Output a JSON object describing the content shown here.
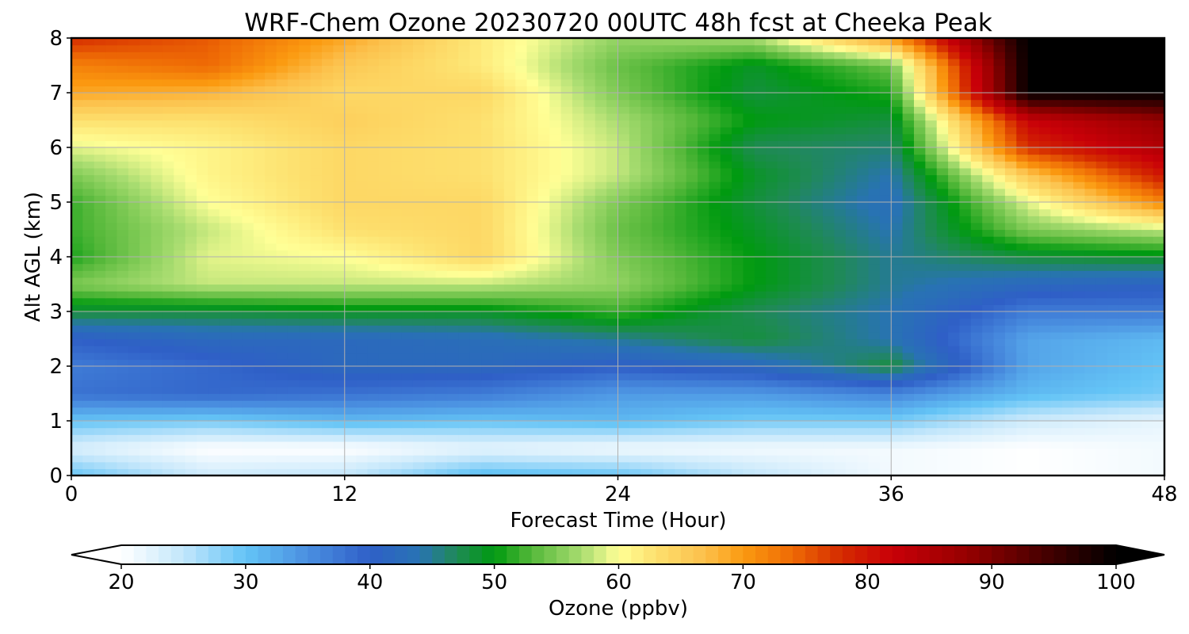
{
  "chart_data": {
    "type": "heatmap",
    "title": "WRF-Chem Ozone  20230720 00UTC 48h fcst at Cheeka Peak",
    "xlabel": "Forecast Time (Hour)",
    "ylabel": "Alt AGL (km)",
    "xlim": [
      0,
      48
    ],
    "ylim": [
      0,
      8
    ],
    "x_ticks": [
      0,
      12,
      24,
      36,
      48
    ],
    "y_ticks": [
      0,
      1,
      2,
      3,
      4,
      5,
      6,
      7,
      8
    ],
    "grid": true,
    "x": [
      0,
      6,
      12,
      18,
      24,
      30,
      36,
      42,
      48
    ],
    "y": [
      0,
      0.5,
      1,
      1.5,
      2,
      2.5,
      3,
      3.5,
      4,
      4.5,
      5,
      5.5,
      6,
      6.5,
      7,
      7.5,
      8
    ],
    "z": [
      [
        30,
        24,
        25,
        31,
        30,
        25,
        21,
        20,
        21
      ],
      [
        23,
        20,
        20,
        22,
        21,
        21,
        21,
        20,
        21
      ],
      [
        30,
        29,
        31,
        30,
        31,
        29,
        29,
        24,
        22
      ],
      [
        38,
        39,
        38,
        37,
        34,
        34,
        36,
        31,
        29
      ],
      [
        37,
        39,
        42,
        42,
        40,
        42,
        48,
        33,
        30
      ],
      [
        40,
        42,
        42,
        43,
        45,
        48,
        44,
        33,
        31
      ],
      [
        48,
        48,
        49,
        49,
        52,
        47,
        44,
        37,
        37
      ],
      [
        55,
        58,
        58,
        58,
        56,
        50,
        45,
        42,
        41
      ],
      [
        51,
        59,
        60,
        64,
        55,
        50,
        45,
        48,
        49
      ],
      [
        52,
        58,
        63,
        64,
        54,
        49,
        44,
        55,
        58
      ],
      [
        52,
        60,
        64,
        64,
        55,
        48,
        43,
        59,
        72
      ],
      [
        55,
        61,
        64,
        63,
        58,
        49,
        44,
        66,
        80
      ],
      [
        59,
        61,
        64,
        63,
        58,
        47,
        46,
        78,
        85
      ],
      [
        63,
        63,
        65,
        63,
        57,
        50,
        48,
        82,
        88
      ],
      [
        69,
        68,
        64,
        64,
        55,
        48,
        51,
        100,
        100
      ],
      [
        72,
        74,
        66,
        62,
        54,
        49,
        54,
        100,
        100
      ],
      [
        78,
        75,
        69,
        62,
        56,
        57,
        70,
        100,
        100
      ]
    ],
    "colorbar": {
      "label": "Ozone  (ppbv)",
      "ticks": [
        20,
        30,
        40,
        50,
        60,
        70,
        80,
        90,
        100
      ],
      "min": 20,
      "max": 100,
      "extend": "both",
      "anchors": [
        [
          20,
          "#ffffff"
        ],
        [
          25,
          "#c2e6fb"
        ],
        [
          30,
          "#64c4f6"
        ],
        [
          35,
          "#4a8fe0"
        ],
        [
          40,
          "#2f5fc7"
        ],
        [
          44,
          "#2873b3"
        ],
        [
          47,
          "#1f8a55"
        ],
        [
          50,
          "#009a10"
        ],
        [
          53,
          "#55b83a"
        ],
        [
          57,
          "#a8dc70"
        ],
        [
          60,
          "#ffff96"
        ],
        [
          63,
          "#fde06e"
        ],
        [
          67,
          "#fcbf4a"
        ],
        [
          70,
          "#fb9a10"
        ],
        [
          74,
          "#ee6a05"
        ],
        [
          78,
          "#d42a00"
        ],
        [
          82,
          "#c80008"
        ],
        [
          88,
          "#960000"
        ],
        [
          94,
          "#4a0000"
        ],
        [
          100,
          "#000000"
        ]
      ]
    }
  }
}
